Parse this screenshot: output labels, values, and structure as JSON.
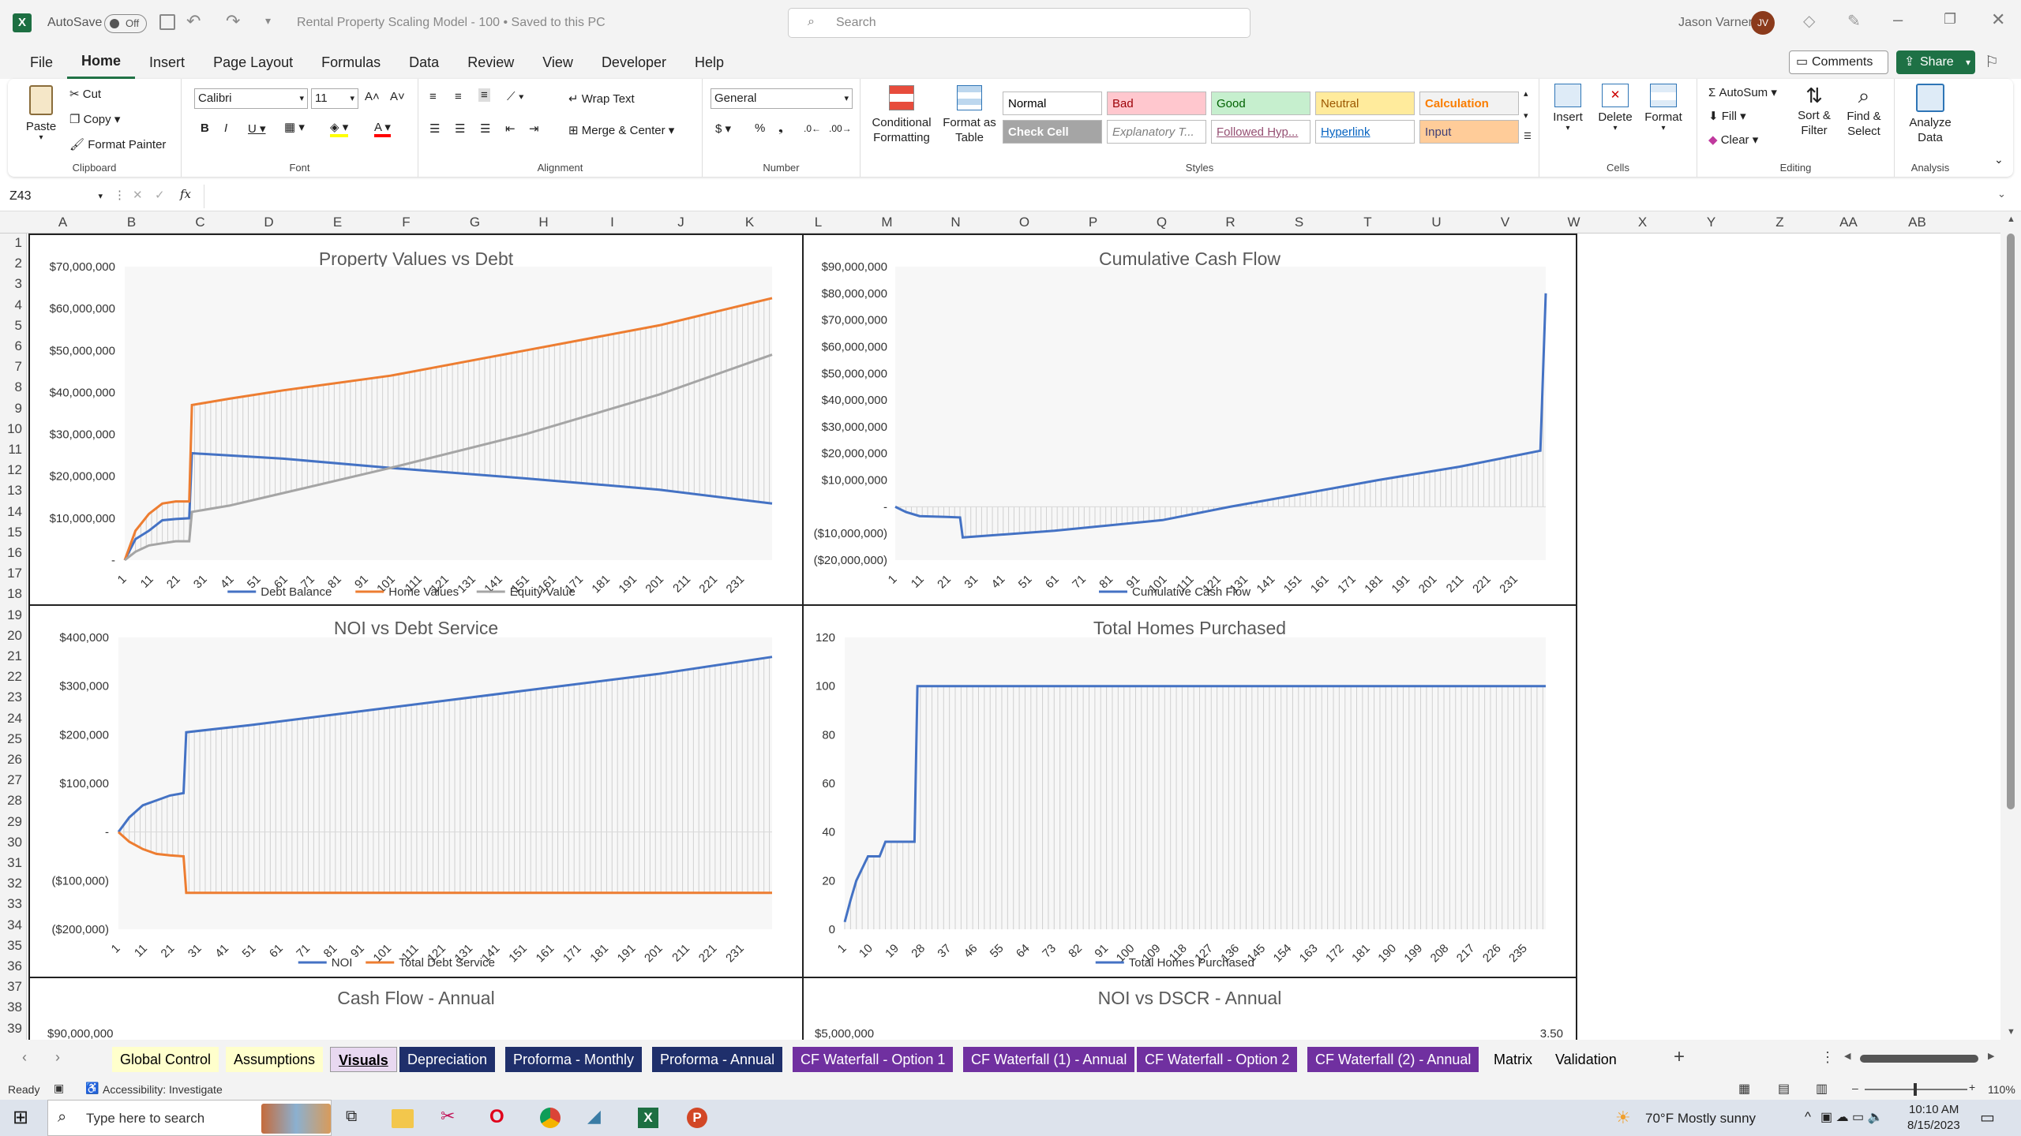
{
  "titlebar": {
    "autosave": "AutoSave",
    "autosave_state": "Off",
    "file_title": "Rental Property Scaling Model - 100 • Saved to this PC",
    "search_placeholder": "Search",
    "user_name": "Jason Varner",
    "user_initials": "JV"
  },
  "menu": [
    "File",
    "Home",
    "Insert",
    "Page Layout",
    "Formulas",
    "Data",
    "Review",
    "View",
    "Developer",
    "Help"
  ],
  "menu_right": {
    "comments": "Comments",
    "share": "Share"
  },
  "ribbon": {
    "clipboard": {
      "paste": "Paste",
      "cut": "Cut",
      "copy": "Copy",
      "format_painter": "Format Painter",
      "label": "Clipboard"
    },
    "font": {
      "name": "Calibri",
      "size": "11",
      "label": "Font"
    },
    "alignment": {
      "wrap": "Wrap Text",
      "merge": "Merge & Center",
      "label": "Alignment"
    },
    "number": {
      "format": "General",
      "label": "Number"
    },
    "styles": {
      "cond_fmt": "Conditional Formatting",
      "format_table": "Format as Table",
      "label": "Styles",
      "cells": [
        {
          "t": "Normal",
          "bg": "#ffffff",
          "fg": "#000000"
        },
        {
          "t": "Bad",
          "bg": "#ffc7ce",
          "fg": "#9c0006"
        },
        {
          "t": "Good",
          "bg": "#c6efce",
          "fg": "#006100"
        },
        {
          "t": "Neutral",
          "bg": "#ffeb9c",
          "fg": "#9c5700"
        },
        {
          "t": "Calculation",
          "bg": "#f2f2f2",
          "fg": "#fa7d00"
        },
        {
          "t": "Check Cell",
          "bg": "#a5a5a5",
          "fg": "#ffffff"
        },
        {
          "t": "Explanatory T...",
          "bg": "#ffffff",
          "fg": "#7f7f7f"
        },
        {
          "t": "Followed Hyp...",
          "bg": "#ffffff",
          "fg": "#954f72"
        },
        {
          "t": "Hyperlink",
          "bg": "#ffffff",
          "fg": "#0563c1"
        },
        {
          "t": "Input",
          "bg": "#ffcc99",
          "fg": "#3f3f76"
        }
      ]
    },
    "cells": {
      "insert": "Insert",
      "delete": "Delete",
      "format": "Format",
      "label": "Cells"
    },
    "editing": {
      "autosum": "AutoSum",
      "fill": "Fill",
      "clear": "Clear",
      "sort": "Sort & Filter",
      "find": "Find & Select",
      "label": "Editing"
    },
    "analysis": {
      "analyze": "Analyze Data",
      "label": "Analysis"
    }
  },
  "formula_bar": {
    "name_box": "Z43",
    "fx": "fx",
    "value": ""
  },
  "columns": [
    "A",
    "B",
    "C",
    "D",
    "E",
    "F",
    "G",
    "H",
    "I",
    "J",
    "K",
    "L",
    "M",
    "N",
    "O",
    "P",
    "Q",
    "R",
    "S",
    "T",
    "U",
    "V",
    "W",
    "X",
    "Y",
    "Z",
    "AA",
    "AB"
  ],
  "rows": [
    "1",
    "2",
    "3",
    "4",
    "5",
    "6",
    "7",
    "8",
    "9",
    "10",
    "11",
    "12",
    "13",
    "14",
    "15",
    "16",
    "17",
    "18",
    "19",
    "20",
    "21",
    "22",
    "23",
    "24",
    "25",
    "26",
    "27",
    "28",
    "29",
    "30",
    "31",
    "32",
    "33",
    "34",
    "35",
    "36",
    "37",
    "38",
    "39"
  ],
  "chart_data": [
    {
      "type": "line",
      "title": "Property Values vs Debt",
      "x_ticks": [
        "1",
        "11",
        "21",
        "31",
        "41",
        "51",
        "61",
        "71",
        "81",
        "91",
        "101",
        "111",
        "121",
        "131",
        "141",
        "151",
        "161",
        "171",
        "181",
        "191",
        "201",
        "211",
        "221",
        "231"
      ],
      "y_ticks": [
        "$70,000,000",
        "$60,000,000",
        "$50,000,000",
        "$40,000,000",
        "$30,000,000",
        "$20,000,000",
        "$10,000,000",
        "-"
      ],
      "ylim": [
        0,
        70000000
      ],
      "series": [
        {
          "name": "Debt Balance",
          "color": "#4472c4",
          "points": [
            [
              1,
              0
            ],
            [
              5,
              5000000
            ],
            [
              10,
              7000000
            ],
            [
              15,
              9500000
            ],
            [
              20,
              9800000
            ],
            [
              25,
              10000000
            ],
            [
              26,
              25500000
            ],
            [
              60,
              24200000
            ],
            [
              100,
              22000000
            ],
            [
              150,
              19500000
            ],
            [
              200,
              16800000
            ],
            [
              242,
              13500000
            ]
          ]
        },
        {
          "name": "Home Values",
          "color": "#ed7d31",
          "points": [
            [
              1,
              0
            ],
            [
              5,
              7000000
            ],
            [
              10,
              11000000
            ],
            [
              15,
              13500000
            ],
            [
              20,
              14000000
            ],
            [
              25,
              14000000
            ],
            [
              26,
              37000000
            ],
            [
              40,
              38500000
            ],
            [
              60,
              40500000
            ],
            [
              100,
              44000000
            ],
            [
              150,
              50000000
            ],
            [
              200,
              56000000
            ],
            [
              242,
              62500000
            ]
          ]
        },
        {
          "name": "Equity Value",
          "color": "#a5a5a5",
          "points": [
            [
              1,
              0
            ],
            [
              5,
              2000000
            ],
            [
              10,
              3500000
            ],
            [
              15,
              4000000
            ],
            [
              20,
              4500000
            ],
            [
              25,
              4500000
            ],
            [
              26,
              11500000
            ],
            [
              40,
              13000000
            ],
            [
              60,
              16000000
            ],
            [
              100,
              22000000
            ],
            [
              150,
              30000000
            ],
            [
              200,
              39500000
            ],
            [
              242,
              49000000
            ]
          ]
        }
      ]
    },
    {
      "type": "line",
      "title": "Cumulative Cash Flow",
      "x_ticks": [
        "1",
        "11",
        "21",
        "31",
        "41",
        "51",
        "61",
        "71",
        "81",
        "91",
        "101",
        "111",
        "121",
        "131",
        "141",
        "151",
        "161",
        "171",
        "181",
        "191",
        "201",
        "211",
        "221",
        "231"
      ],
      "y_ticks": [
        "$90,000,000",
        "$80,000,000",
        "$70,000,000",
        "$60,000,000",
        "$50,000,000",
        "$40,000,000",
        "$30,000,000",
        "$20,000,000",
        "$10,000,000",
        "-",
        "($10,000,000)",
        "($20,000,000)"
      ],
      "ylim": [
        -20000000,
        90000000
      ],
      "series": [
        {
          "name": "Cumulative Cash Flow",
          "color": "#4472c4",
          "points": [
            [
              1,
              0
            ],
            [
              5,
              -2000000
            ],
            [
              10,
              -3500000
            ],
            [
              20,
              -3800000
            ],
            [
              25,
              -4000000
            ],
            [
              26,
              -11500000
            ],
            [
              60,
              -9000000
            ],
            [
              100,
              -5000000
            ],
            [
              125,
              0
            ],
            [
              150,
              4500000
            ],
            [
              180,
              10000000
            ],
            [
              210,
              15000000
            ],
            [
              240,
              21000000
            ],
            [
              242,
              80000000
            ]
          ]
        }
      ]
    },
    {
      "type": "line",
      "title": "NOI vs Debt Service",
      "x_ticks": [
        "1",
        "11",
        "21",
        "31",
        "41",
        "51",
        "61",
        "71",
        "81",
        "91",
        "101",
        "111",
        "121",
        "131",
        "141",
        "151",
        "161",
        "171",
        "181",
        "191",
        "201",
        "211",
        "221",
        "231"
      ],
      "y_ticks": [
        "$400,000",
        "$300,000",
        "$200,000",
        "$100,000",
        "-",
        "($100,000)",
        "($200,000)"
      ],
      "ylim": [
        -200000,
        400000
      ],
      "series": [
        {
          "name": "NOI",
          "color": "#4472c4",
          "points": [
            [
              1,
              0
            ],
            [
              5,
              30000
            ],
            [
              10,
              55000
            ],
            [
              15,
              65000
            ],
            [
              20,
              75000
            ],
            [
              25,
              80000
            ],
            [
              26,
              205000
            ],
            [
              50,
              220000
            ],
            [
              100,
              255000
            ],
            [
              150,
              290000
            ],
            [
              200,
              325000
            ],
            [
              242,
              360000
            ]
          ]
        },
        {
          "name": "Total Debt Service",
          "color": "#ed7d31",
          "points": [
            [
              1,
              0
            ],
            [
              5,
              -20000
            ],
            [
              10,
              -35000
            ],
            [
              15,
              -45000
            ],
            [
              20,
              -48000
            ],
            [
              25,
              -50000
            ],
            [
              26,
              -125000
            ],
            [
              242,
              -125000
            ]
          ]
        }
      ]
    },
    {
      "type": "line",
      "title": "Total Homes Purchased",
      "x_ticks": [
        "1",
        "10",
        "19",
        "28",
        "37",
        "46",
        "55",
        "64",
        "73",
        "82",
        "91",
        "100",
        "109",
        "118",
        "127",
        "136",
        "145",
        "154",
        "163",
        "172",
        "181",
        "190",
        "199",
        "208",
        "217",
        "226",
        "235"
      ],
      "y_ticks": [
        "120",
        "100",
        "80",
        "60",
        "40",
        "20",
        "0"
      ],
      "ylim": [
        0,
        120
      ],
      "series": [
        {
          "name": "Total Homes Purchased",
          "color": "#4472c4",
          "points": [
            [
              1,
              3
            ],
            [
              3,
              12
            ],
            [
              5,
              20
            ],
            [
              7,
              25
            ],
            [
              9,
              30
            ],
            [
              13,
              30
            ],
            [
              15,
              36
            ],
            [
              25,
              36
            ],
            [
              26,
              100
            ],
            [
              242,
              100
            ]
          ]
        }
      ]
    },
    {
      "type": "bar",
      "title": "Cash Flow - Annual",
      "y_ticks": [
        "$90,000,000"
      ]
    },
    {
      "type": "bar",
      "title": "NOI vs DSCR - Annual",
      "y_ticks": [
        "$5,000,000"
      ],
      "y2_ticks": [
        "3.50"
      ]
    }
  ],
  "sheet_tabs": [
    {
      "label": "Global Control",
      "bg": "#ffffcc",
      "fg": "#000000"
    },
    {
      "label": "Assumptions",
      "bg": "#ffffcc",
      "fg": "#000000"
    },
    {
      "label": "Visuals",
      "bg": "#e8d8f0",
      "fg": "#000000",
      "active": true
    },
    {
      "label": "Depreciation",
      "bg": "#1f2f6b",
      "fg": "#ffffff"
    },
    {
      "label": "Proforma - Monthly",
      "bg": "#1f2f6b",
      "fg": "#ffffff"
    },
    {
      "label": "Proforma - Annual",
      "bg": "#1f2f6b",
      "fg": "#ffffff"
    },
    {
      "label": "CF Waterfall - Option 1",
      "bg": "#7030a0",
      "fg": "#ffffff"
    },
    {
      "label": "CF Waterfall (1) - Annual",
      "bg": "#7030a0",
      "fg": "#ffffff"
    },
    {
      "label": "CF Waterfall - Option 2",
      "bg": "#7030a0",
      "fg": "#ffffff"
    },
    {
      "label": "CF Waterfall (2) - Annual",
      "bg": "#7030a0",
      "fg": "#ffffff"
    },
    {
      "label": "Matrix",
      "bg": "#f3f3f3",
      "fg": "#000000"
    },
    {
      "label": "Validation",
      "bg": "#f3f3f3",
      "fg": "#000000"
    }
  ],
  "status": {
    "ready": "Ready",
    "accessibility": "Accessibility: Investigate",
    "zoom": "110%"
  },
  "taskbar": {
    "search": "Type here to search",
    "weather": "70°F  Mostly sunny",
    "time": "10:10 AM",
    "date": "8/15/2023"
  }
}
